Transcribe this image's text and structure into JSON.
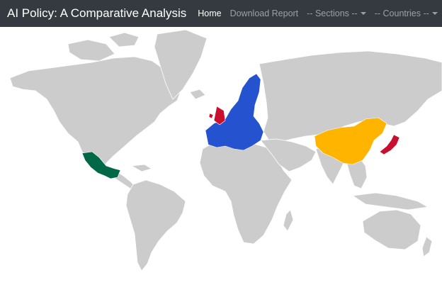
{
  "navbar": {
    "brand": "AI Policy: A Comparative Analysis",
    "home": "Home",
    "download": "Download Report",
    "sections": "-- Sections --",
    "countries": "-- Countries --"
  },
  "map": {
    "base_color": "#cccccc",
    "highlighted": [
      {
        "region": "European Union",
        "color": "#2553d0"
      },
      {
        "region": "United Kingdom",
        "color": "#c8102e"
      },
      {
        "region": "Mexico",
        "color": "#006847"
      },
      {
        "region": "China",
        "color": "#ffb400"
      },
      {
        "region": "Japan",
        "color": "#c8102e"
      }
    ]
  }
}
